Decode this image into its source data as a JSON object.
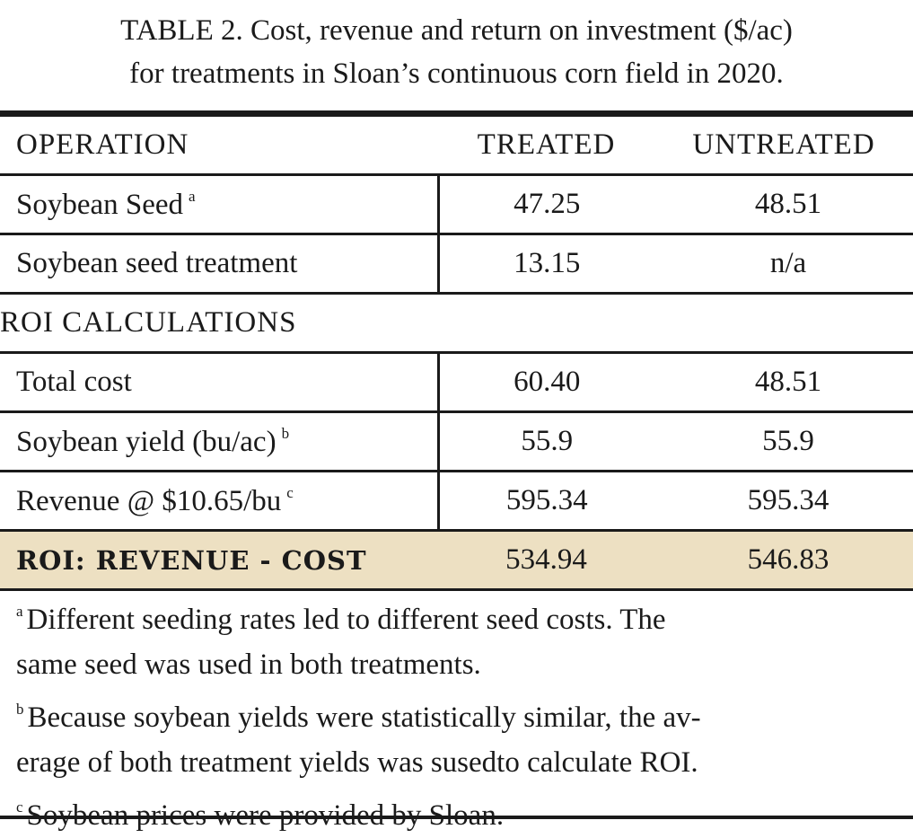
{
  "title": {
    "line1": "TABLE 2. Cost, revenue and return on investment ($/ac)",
    "line2": "for treatments in Sloan’s continuous corn field in 2020."
  },
  "header": {
    "operation": "OPERATION",
    "treated": "TREATED",
    "untreated": "UNTREATED"
  },
  "operations": [
    {
      "label": "Soybean Seed",
      "note": "a",
      "treated": "47.25",
      "untreated": "48.51"
    },
    {
      "label": "Soybean seed treatment",
      "note": "",
      "treated": "13.15",
      "untreated": "n/a"
    }
  ],
  "roi_section": {
    "heading": "ROI CALCULATIONS",
    "rows": [
      {
        "label": "Total cost",
        "note": "",
        "treated": "60.40",
        "untreated": "48.51"
      },
      {
        "label": "Soybean yield (bu/ac)",
        "note": "b",
        "treated": "55.9",
        "untreated": "55.9"
      },
      {
        "label": "Revenue @ $10.65/bu",
        "note": "c",
        "treated": "595.34",
        "untreated": "595.34"
      }
    ],
    "roi": {
      "label": "ROI: REVENUE - COST",
      "treated": "534.94",
      "untreated": "546.83"
    }
  },
  "footnotes": [
    {
      "mark": "a",
      "text": "Different seeding rates led to different seed costs. The same seed was used in both treatments.",
      "line1": "Different seeding rates led to different seed costs. The",
      "line2": "same seed was used in both treatments."
    },
    {
      "mark": "b",
      "text": "Because soybean yields were statistically similar, the average of both treatment yields was susedto calculate ROI.",
      "line1": "Because soybean yields were statistically similar, the av-",
      "line2": "erage of both treatment yields was susedto calculate ROI."
    },
    {
      "mark": "c",
      "text": "Soybean prices were provided by Sloan.",
      "line1": "Soybean prices were provided by Sloan.",
      "line2": ""
    }
  ],
  "colors": {
    "roi_highlight": "#ede0c2",
    "rule": "#1a1a1a"
  }
}
